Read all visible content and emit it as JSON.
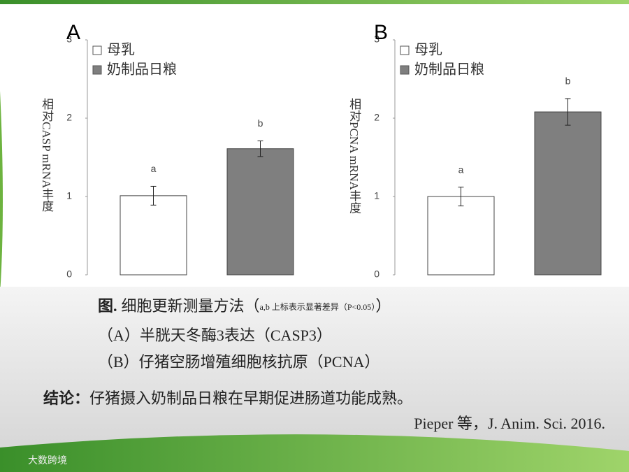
{
  "chart_data": [
    {
      "type": "bar",
      "panel": "A",
      "ylabel": "相对CASP mRNA丰度",
      "categories": [
        null
      ],
      "series": [
        {
          "name": "母乳",
          "color": "#ffffff",
          "values": [
            1.01
          ],
          "errors": [
            0.12
          ],
          "label": "a"
        },
        {
          "name": "奶制品日粮",
          "color": "#7f7f7f",
          "values": [
            1.61
          ],
          "errors": [
            0.1
          ],
          "label": "b"
        }
      ],
      "ylim": [
        0,
        3
      ],
      "yticks": [
        0,
        1,
        2,
        3
      ],
      "grid": false
    },
    {
      "type": "bar",
      "panel": "B",
      "ylabel": "相对PCNA mRNA丰度",
      "categories": [
        null
      ],
      "series": [
        {
          "name": "母乳",
          "color": "#ffffff",
          "values": [
            1.0
          ],
          "errors": [
            0.12
          ],
          "label": "a"
        },
        {
          "name": "奶制品日粮",
          "color": "#7f7f7f",
          "values": [
            2.08
          ],
          "errors": [
            0.17
          ],
          "label": "b"
        }
      ],
      "ylim": [
        0,
        3
      ],
      "yticks": [
        0,
        1,
        2,
        3
      ],
      "grid": false
    }
  ],
  "caption": {
    "fig": "图.",
    "title": "细胞更新测量方法（",
    "note": "a,b 上标表示显著差异（P<0.05）",
    "close": "）",
    "line_a": "（A）半胱天冬酶3表达（CASP3）",
    "line_b": "（B）仔猪空肠增殖细胞核抗原（PCNA）"
  },
  "conclusion": {
    "label": "结论：",
    "text": "仔猪摄入奶制品日粮在早期促进肠道功能成熟。"
  },
  "citation": "Pieper 等，J. Anim. Sci. 2016.",
  "watermark": "大数跨境"
}
